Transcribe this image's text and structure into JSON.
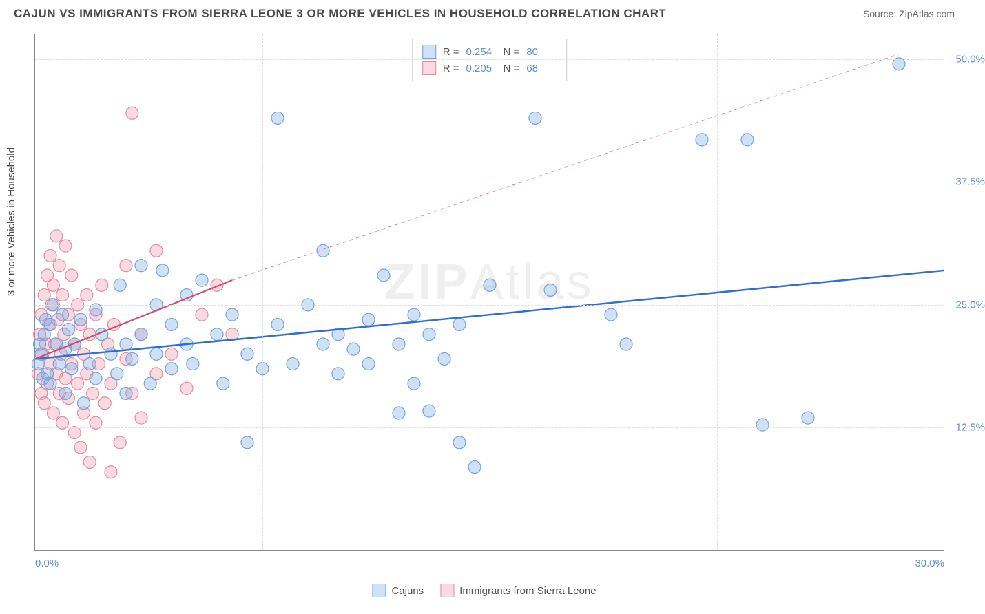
{
  "title": "CAJUN VS IMMIGRANTS FROM SIERRA LEONE 3 OR MORE VEHICLES IN HOUSEHOLD CORRELATION CHART",
  "source": "Source: ZipAtlas.com",
  "ylabel": "3 or more Vehicles in Household",
  "watermark": "ZIPAtlas",
  "chart": {
    "type": "scatter",
    "xlim": [
      0,
      30
    ],
    "ylim": [
      0,
      52.5
    ],
    "yticks": [
      12.5,
      25.0,
      37.5,
      50.0
    ],
    "ytick_labels": [
      "12.5%",
      "25.0%",
      "37.5%",
      "50.0%"
    ],
    "xticks": [
      0,
      15,
      30
    ],
    "xtick_labels": [
      "0.0%",
      "",
      "30.0%"
    ],
    "vgrid_positions": [
      7.5,
      15,
      22.5
    ],
    "grid_color": "#dddddd",
    "background_color": "#ffffff",
    "axis_color": "#888888",
    "tick_label_color": "#5a8fd6",
    "marker_radius": 9,
    "marker_stroke_width": 1.2,
    "series": [
      {
        "name": "Cajuns",
        "fill": "rgba(120,170,230,0.35)",
        "stroke": "#6fa3dd",
        "r": 0.254,
        "n": 80,
        "trend": {
          "x1": 0,
          "y1": 19.5,
          "x2": 30,
          "y2": 28.5,
          "stroke": "#2f6fd0",
          "width": 2.5,
          "dash": ""
        },
        "points": [
          [
            0.2,
            20
          ],
          [
            0.3,
            22
          ],
          [
            0.4,
            18
          ],
          [
            0.5,
            23
          ],
          [
            0.5,
            17
          ],
          [
            0.6,
            25
          ],
          [
            0.7,
            21
          ],
          [
            0.8,
            19
          ],
          [
            0.9,
            24
          ],
          [
            1.0,
            16
          ],
          [
            1.0,
            20.5
          ],
          [
            1.1,
            22.5
          ],
          [
            1.2,
            18.5
          ],
          [
            1.3,
            21
          ],
          [
            1.5,
            23.5
          ],
          [
            1.6,
            15
          ],
          [
            1.8,
            19
          ],
          [
            2.0,
            24.5
          ],
          [
            2.0,
            17.5
          ],
          [
            2.2,
            22
          ],
          [
            2.5,
            20
          ],
          [
            2.7,
            18
          ],
          [
            2.8,
            27
          ],
          [
            3.0,
            21
          ],
          [
            3.0,
            16
          ],
          [
            3.2,
            19.5
          ],
          [
            3.5,
            29
          ],
          [
            3.5,
            22
          ],
          [
            3.8,
            17
          ],
          [
            4.0,
            25
          ],
          [
            4.0,
            20
          ],
          [
            4.2,
            28.5
          ],
          [
            4.5,
            23
          ],
          [
            4.5,
            18.5
          ],
          [
            5.0,
            26
          ],
          [
            5.0,
            21
          ],
          [
            5.2,
            19
          ],
          [
            5.5,
            27.5
          ],
          [
            6.0,
            22
          ],
          [
            6.2,
            17
          ],
          [
            6.5,
            24
          ],
          [
            7.0,
            20
          ],
          [
            7.0,
            11
          ],
          [
            7.5,
            18.5
          ],
          [
            8.0,
            23
          ],
          [
            8.0,
            44
          ],
          [
            8.5,
            19
          ],
          [
            9.0,
            25
          ],
          [
            9.5,
            21
          ],
          [
            9.5,
            30.5
          ],
          [
            10.0,
            18
          ],
          [
            10.0,
            22
          ],
          [
            10.5,
            20.5
          ],
          [
            11.0,
            23.5
          ],
          [
            11.0,
            19
          ],
          [
            11.5,
            28
          ],
          [
            12.0,
            21
          ],
          [
            12.0,
            14
          ],
          [
            12.5,
            17
          ],
          [
            12.5,
            24
          ],
          [
            13.0,
            22
          ],
          [
            13.0,
            14.2
          ],
          [
            13.5,
            19.5
          ],
          [
            14.0,
            11
          ],
          [
            14.0,
            23
          ],
          [
            14.5,
            8.5
          ],
          [
            15.0,
            27
          ],
          [
            16.5,
            44
          ],
          [
            17.0,
            26.5
          ],
          [
            19.0,
            24
          ],
          [
            19.5,
            21
          ],
          [
            22.0,
            41.8
          ],
          [
            23.5,
            41.8
          ],
          [
            24.0,
            12.8
          ],
          [
            25.5,
            13.5
          ],
          [
            28.5,
            49.5
          ],
          [
            0.1,
            19
          ],
          [
            0.15,
            21
          ],
          [
            0.25,
            17.5
          ],
          [
            0.35,
            23.5
          ]
        ]
      },
      {
        "name": "Immigrants from Sierra Leone",
        "fill": "rgba(240,150,170,0.35)",
        "stroke": "#e38aa0",
        "r": 0.205,
        "n": 68,
        "trend_solid": {
          "x1": 0,
          "y1": 19.5,
          "x2": 6.5,
          "y2": 27.5,
          "stroke": "#d84a6b",
          "width": 2.2
        },
        "trend_dash": {
          "x1": 6.5,
          "y1": 27.5,
          "x2": 28.5,
          "y2": 50.5,
          "stroke": "#e38aa0",
          "width": 1.4,
          "dash": "5 5"
        },
        "points": [
          [
            0.1,
            18
          ],
          [
            0.15,
            22
          ],
          [
            0.2,
            16
          ],
          [
            0.2,
            24
          ],
          [
            0.25,
            20
          ],
          [
            0.3,
            26
          ],
          [
            0.3,
            15
          ],
          [
            0.35,
            21
          ],
          [
            0.4,
            28
          ],
          [
            0.4,
            17
          ],
          [
            0.45,
            23
          ],
          [
            0.5,
            19
          ],
          [
            0.5,
            30
          ],
          [
            0.55,
            25
          ],
          [
            0.6,
            14
          ],
          [
            0.6,
            27
          ],
          [
            0.65,
            21
          ],
          [
            0.7,
            18
          ],
          [
            0.7,
            32
          ],
          [
            0.75,
            23.5
          ],
          [
            0.8,
            16
          ],
          [
            0.8,
            29
          ],
          [
            0.85,
            20
          ],
          [
            0.9,
            26
          ],
          [
            0.9,
            13
          ],
          [
            0.95,
            22
          ],
          [
            1.0,
            17.5
          ],
          [
            1.0,
            31
          ],
          [
            1.1,
            24
          ],
          [
            1.1,
            15.5
          ],
          [
            1.2,
            19
          ],
          [
            1.2,
            28
          ],
          [
            1.3,
            21
          ],
          [
            1.3,
            12
          ],
          [
            1.4,
            25
          ],
          [
            1.4,
            17
          ],
          [
            1.5,
            23
          ],
          [
            1.5,
            10.5
          ],
          [
            1.6,
            20
          ],
          [
            1.6,
            14
          ],
          [
            1.7,
            26
          ],
          [
            1.7,
            18
          ],
          [
            1.8,
            22
          ],
          [
            1.8,
            9
          ],
          [
            1.9,
            16
          ],
          [
            2.0,
            24
          ],
          [
            2.0,
            13
          ],
          [
            2.1,
            19
          ],
          [
            2.2,
            27
          ],
          [
            2.3,
            15
          ],
          [
            2.4,
            21
          ],
          [
            2.5,
            17
          ],
          [
            2.5,
            8
          ],
          [
            2.6,
            23
          ],
          [
            2.8,
            11
          ],
          [
            3.0,
            19.5
          ],
          [
            3.0,
            29
          ],
          [
            3.2,
            16
          ],
          [
            3.2,
            44.5
          ],
          [
            3.5,
            22
          ],
          [
            3.5,
            13.5
          ],
          [
            4.0,
            18
          ],
          [
            4.0,
            30.5
          ],
          [
            4.5,
            20
          ],
          [
            5.0,
            16.5
          ],
          [
            5.5,
            24
          ],
          [
            6.0,
            27
          ],
          [
            6.5,
            22
          ]
        ]
      }
    ]
  },
  "legend": {
    "series1_label": "Cajuns",
    "series2_label": "Immigrants from Sierra Leone",
    "r_label": "R =",
    "n_label": "N ="
  }
}
